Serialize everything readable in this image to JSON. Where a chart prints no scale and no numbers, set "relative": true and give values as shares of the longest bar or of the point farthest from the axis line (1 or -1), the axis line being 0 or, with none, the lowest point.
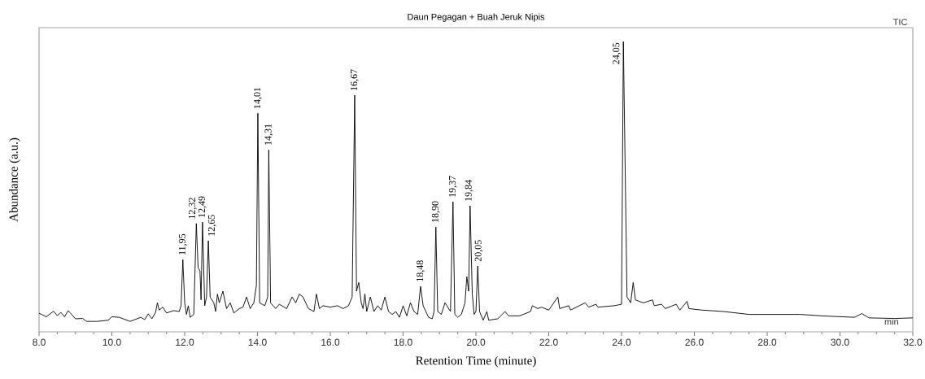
{
  "chart_data": {
    "type": "line",
    "relative": true,
    "title": "Daun Pegagan + Buah Jeruk Nipis",
    "xlabel": "Retention Time (minute)",
    "ylabel": "Abundance (a.u.)",
    "xlim": [
      8,
      32
    ],
    "xticks": [
      {
        "value": 8,
        "label": "8.0"
      },
      {
        "value": 10,
        "label": "10.0"
      },
      {
        "value": 12,
        "label": "12.0"
      },
      {
        "value": 14,
        "label": "14.0"
      },
      {
        "value": 16,
        "label": "16.0"
      },
      {
        "value": 18,
        "label": "18.0"
      },
      {
        "value": 20,
        "label": "20.0"
      },
      {
        "value": 22,
        "label": "22.0"
      },
      {
        "value": 24,
        "label": "24.0"
      },
      {
        "value": 26,
        "label": "26.0"
      },
      {
        "value": 28,
        "label": "28.0"
      },
      {
        "value": 30,
        "label": "30.0"
      },
      {
        "value": 32,
        "label": "32.0"
      }
    ],
    "series": [
      {
        "color": "#000000",
        "x": [
          8.0,
          8.1,
          8.2,
          8.4,
          8.5,
          8.6,
          8.7,
          8.8,
          9.0,
          9.2,
          9.3,
          9.6,
          9.9,
          10.0,
          10.2,
          10.5,
          10.8,
          10.9,
          11.0,
          11.1,
          11.2,
          11.25,
          11.3,
          11.4,
          11.5,
          11.7,
          11.85,
          11.9,
          11.95,
          12.0,
          12.05,
          12.1,
          12.15,
          12.25,
          12.32,
          12.37,
          12.42,
          12.45,
          12.49,
          12.55,
          12.6,
          12.65,
          12.7,
          12.8,
          12.85,
          12.9,
          12.95,
          13.05,
          13.15,
          13.25,
          13.35,
          13.5,
          13.6,
          13.7,
          13.8,
          13.9,
          13.97,
          14.01,
          14.06,
          14.2,
          14.28,
          14.31,
          14.36,
          14.5,
          14.6,
          14.8,
          14.95,
          15.05,
          15.15,
          15.25,
          15.4,
          15.55,
          15.62,
          15.7,
          15.8,
          16.0,
          16.2,
          16.35,
          16.5,
          16.6,
          16.67,
          16.72,
          16.78,
          16.85,
          16.9,
          16.95,
          17.0,
          17.1,
          17.2,
          17.3,
          17.4,
          17.5,
          17.6,
          17.7,
          17.8,
          17.9,
          18.0,
          18.1,
          18.2,
          18.3,
          18.4,
          18.48,
          18.55,
          18.7,
          18.8,
          18.85,
          18.9,
          18.95,
          19.05,
          19.15,
          19.2,
          19.3,
          19.37,
          19.42,
          19.5,
          19.6,
          19.65,
          19.7,
          19.75,
          19.8,
          19.84,
          19.9,
          19.95,
          20.0,
          20.05,
          20.1,
          20.2,
          20.3,
          20.35,
          20.6,
          20.8,
          20.9,
          21.2,
          21.5,
          21.55,
          21.7,
          21.8,
          22.0,
          22.25,
          22.3,
          22.55,
          22.6,
          23.0,
          23.1,
          23.3,
          23.35,
          23.8,
          24.0,
          24.05,
          24.15,
          24.25,
          24.32,
          24.38,
          24.6,
          24.85,
          24.9,
          25.1,
          25.2,
          25.5,
          25.6,
          25.7,
          25.8,
          25.85,
          26.2,
          26.8,
          27.5,
          28.0,
          28.9,
          29.5,
          30.4,
          30.6,
          30.8,
          31.5,
          32.0
        ],
        "values": [
          0.064,
          0.058,
          0.052,
          0.071,
          0.056,
          0.067,
          0.052,
          0.073,
          0.045,
          0.046,
          0.036,
          0.036,
          0.04,
          0.052,
          0.05,
          0.036,
          0.05,
          0.042,
          0.062,
          0.045,
          0.067,
          0.1,
          0.075,
          0.085,
          0.065,
          0.073,
          0.07,
          0.09,
          0.249,
          0.1,
          0.06,
          0.09,
          0.05,
          0.06,
          0.373,
          0.22,
          0.21,
          0.11,
          0.378,
          0.09,
          0.12,
          0.314,
          0.12,
          0.1,
          0.07,
          0.13,
          0.1,
          0.14,
          0.08,
          0.1,
          0.065,
          0.08,
          0.085,
          0.12,
          0.08,
          0.1,
          0.16,
          0.753,
          0.1,
          0.09,
          0.12,
          0.627,
          0.1,
          0.08,
          0.095,
          0.08,
          0.12,
          0.1,
          0.13,
          0.12,
          0.08,
          0.07,
          0.13,
          0.08,
          0.09,
          0.085,
          0.09,
          0.08,
          0.09,
          0.12,
          0.815,
          0.14,
          0.17,
          0.1,
          0.08,
          0.13,
          0.07,
          0.12,
          0.07,
          0.09,
          0.075,
          0.12,
          0.07,
          0.06,
          0.07,
          0.05,
          0.09,
          0.055,
          0.1,
          0.07,
          0.06,
          0.157,
          0.09,
          0.05,
          0.045,
          0.07,
          0.361,
          0.07,
          0.06,
          0.1,
          0.09,
          0.07,
          0.448,
          0.06,
          0.05,
          0.06,
          0.08,
          0.1,
          0.19,
          0.14,
          0.434,
          0.13,
          0.06,
          0.07,
          0.227,
          0.07,
          0.04,
          0.07,
          0.04,
          0.045,
          0.07,
          0.055,
          0.055,
          0.07,
          0.09,
          0.08,
          0.085,
          0.075,
          0.12,
          0.08,
          0.09,
          0.075,
          0.1,
          0.085,
          0.095,
          0.085,
          0.09,
          0.095,
          1.0,
          0.12,
          0.1,
          0.17,
          0.11,
          0.1,
          0.11,
          0.09,
          0.095,
          0.08,
          0.095,
          0.075,
          0.09,
          0.105,
          0.08,
          0.075,
          0.07,
          0.06,
          0.06,
          0.06,
          0.055,
          0.05,
          0.063,
          0.048,
          0.046,
          0.048
        ]
      }
    ],
    "annotations": [
      {
        "text": "11,95",
        "x": 11.95,
        "y": 0.249
      },
      {
        "text": "12,32",
        "x": 12.32,
        "y": 0.373
      },
      {
        "text": "12,49",
        "x": 12.49,
        "y": 0.378
      },
      {
        "text": "12,65",
        "x": 12.65,
        "y": 0.314
      },
      {
        "text": "14,01",
        "x": 14.01,
        "y": 0.753
      },
      {
        "text": "14,31",
        "x": 14.31,
        "y": 0.627
      },
      {
        "text": "16,67",
        "x": 16.67,
        "y": 0.815
      },
      {
        "text": "18,48",
        "x": 18.48,
        "y": 0.157
      },
      {
        "text": "18,90",
        "x": 18.9,
        "y": 0.361
      },
      {
        "text": "19,37",
        "x": 19.37,
        "y": 0.448
      },
      {
        "text": "19,84",
        "x": 19.84,
        "y": 0.434
      },
      {
        "text": "20,05",
        "x": 20.05,
        "y": 0.227
      },
      {
        "text": "24,05",
        "x": 24.05,
        "y": 1.0
      },
      "TIC",
      "min"
    ]
  }
}
